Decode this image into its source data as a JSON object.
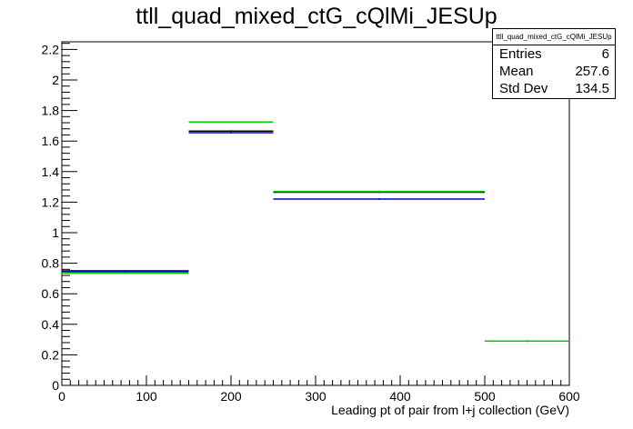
{
  "chart_data": {
    "type": "histogram-step",
    "title": "ttll_quad_mixed_ctG_cQlMi_JESUp",
    "xlabel": "Leading pt of pair from l+j collection (GeV)",
    "ylabel": "",
    "xlim": [
      0,
      600
    ],
    "ylim": [
      0,
      2.25
    ],
    "bin_edges": [
      0,
      150,
      250,
      500,
      600
    ],
    "series": [
      {
        "color": "#000000",
        "values": [
          0.75,
          1.665,
          1.265,
          0.29
        ]
      },
      {
        "color": "#0000cc",
        "values": [
          0.745,
          1.655,
          1.22,
          0.29
        ]
      },
      {
        "color": "#00cc00",
        "values": [
          0.735,
          1.725,
          1.27,
          0.29
        ]
      }
    ],
    "x_ticks": [
      0,
      100,
      200,
      300,
      400,
      500,
      600
    ],
    "y_ticks": [
      0,
      0.2,
      0.4,
      0.6,
      0.8,
      1,
      1.2,
      1.4,
      1.6,
      1.8,
      2,
      2.2
    ],
    "stats": {
      "name": "ttll_quad_mixed_ctG_cQlMi_JESUp",
      "rows": [
        {
          "label": "Entries",
          "value": "6"
        },
        {
          "label": "Mean",
          "value": "257.6"
        },
        {
          "label": "Std Dev",
          "value": "134.5"
        }
      ]
    }
  }
}
